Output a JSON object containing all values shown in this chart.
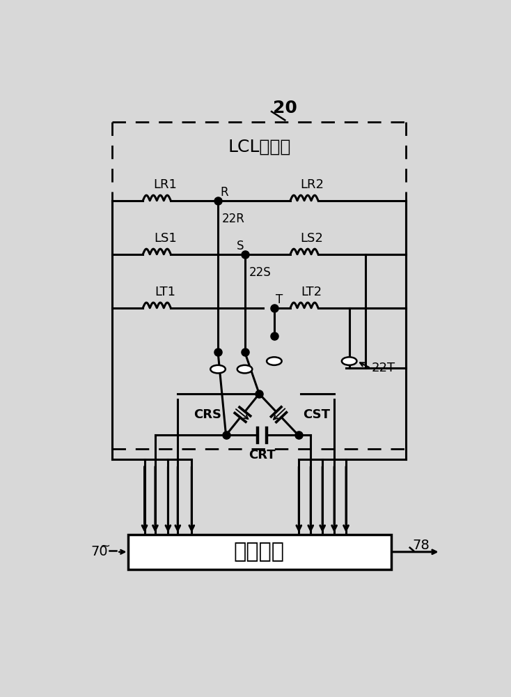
{
  "bg_color": "#d8d8d8",
  "fg_color": "#000000",
  "white": "#ffffff",
  "title_20": "20",
  "label_lcl": "LCL滤波器",
  "label_lr1": "LR1",
  "label_lr2": "LR2",
  "label_ls1": "LS1",
  "label_ls2": "LS2",
  "label_lt1": "LT1",
  "label_lt2": "LT2",
  "label_22r": "22R",
  "label_22s": "22S",
  "label_22t": "22T",
  "label_r": "R",
  "label_s": "S",
  "label_t": "T",
  "label_crs": "CRS",
  "label_cst": "CST",
  "label_crt": "CRT",
  "label_70": "70",
  "label_78": "78",
  "label_detect": "劣化检测",
  "lw": 2.2
}
